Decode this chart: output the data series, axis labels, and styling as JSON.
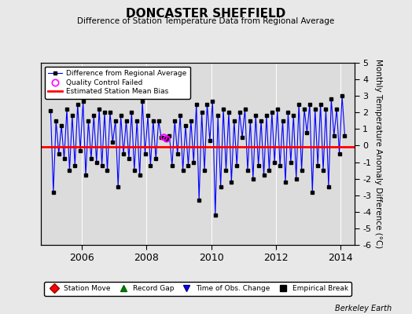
{
  "title": "DONCASTER SHEFFIELD",
  "subtitle": "Difference of Station Temperature Data from Regional Average",
  "ylabel_right": "Monthly Temperature Anomaly Difference (°C)",
  "background_color": "#e8e8e8",
  "plot_bg_color": "#dcdcdc",
  "bias_value": -0.05,
  "ylim": [
    -6,
    5
  ],
  "xlim_start": 2004.75,
  "xlim_end": 2014.42,
  "xticks": [
    2006,
    2008,
    2010,
    2012,
    2014
  ],
  "yticks": [
    -6,
    -5,
    -4,
    -3,
    -2,
    -1,
    0,
    1,
    2,
    3,
    4,
    5
  ],
  "line_color": "#0000ff",
  "marker_color": "#000000",
  "bias_color": "#ff0000",
  "qc_marker_color": "#ff00ff",
  "footer_text": "Berkeley Earth",
  "time_series": [
    2005.042,
    2005.125,
    2005.208,
    2005.292,
    2005.375,
    2005.458,
    2005.542,
    2005.625,
    2005.708,
    2005.792,
    2005.875,
    2005.958,
    2006.042,
    2006.125,
    2006.208,
    2006.292,
    2006.375,
    2006.458,
    2006.542,
    2006.625,
    2006.708,
    2006.792,
    2006.875,
    2006.958,
    2007.042,
    2007.125,
    2007.208,
    2007.292,
    2007.375,
    2007.458,
    2007.542,
    2007.625,
    2007.708,
    2007.792,
    2007.875,
    2007.958,
    2008.042,
    2008.125,
    2008.208,
    2008.292,
    2008.375,
    2008.458,
    2008.542,
    2008.625,
    2008.708,
    2008.792,
    2008.875,
    2008.958,
    2009.042,
    2009.125,
    2009.208,
    2009.292,
    2009.375,
    2009.458,
    2009.542,
    2009.625,
    2009.708,
    2009.792,
    2009.875,
    2009.958,
    2010.042,
    2010.125,
    2010.208,
    2010.292,
    2010.375,
    2010.458,
    2010.542,
    2010.625,
    2010.708,
    2010.792,
    2010.875,
    2010.958,
    2011.042,
    2011.125,
    2011.208,
    2011.292,
    2011.375,
    2011.458,
    2011.542,
    2011.625,
    2011.708,
    2011.792,
    2011.875,
    2011.958,
    2012.042,
    2012.125,
    2012.208,
    2012.292,
    2012.375,
    2012.458,
    2012.542,
    2012.625,
    2012.708,
    2012.792,
    2012.875,
    2012.958,
    2013.042,
    2013.125,
    2013.208,
    2013.292,
    2013.375,
    2013.458,
    2013.542,
    2013.625,
    2013.708,
    2013.792,
    2013.875,
    2013.958,
    2014.042,
    2014.125
  ],
  "values": [
    2.1,
    -2.8,
    1.5,
    -0.5,
    1.2,
    -0.8,
    2.2,
    -1.5,
    1.8,
    -1.2,
    2.5,
    -0.3,
    2.7,
    -1.8,
    1.5,
    -0.8,
    1.8,
    -1.0,
    2.2,
    -1.2,
    2.0,
    -1.5,
    2.0,
    0.2,
    1.5,
    -2.5,
    1.8,
    -0.5,
    1.5,
    -0.8,
    2.0,
    -1.5,
    1.5,
    -1.8,
    2.7,
    -0.5,
    1.8,
    -1.2,
    1.5,
    -0.8,
    1.5,
    0.5,
    0.5,
    0.4,
    0.6,
    -1.2,
    1.5,
    -0.5,
    1.8,
    -1.5,
    1.2,
    -1.2,
    1.5,
    -1.0,
    2.5,
    -3.3,
    2.0,
    -1.5,
    2.5,
    0.3,
    2.7,
    -4.2,
    1.8,
    -2.5,
    2.2,
    -1.5,
    2.0,
    -2.2,
    1.5,
    -1.2,
    2.0,
    0.5,
    2.2,
    -1.5,
    1.5,
    -2.0,
    1.8,
    -1.2,
    1.5,
    -1.8,
    1.8,
    -1.5,
    2.0,
    -1.0,
    2.2,
    -1.2,
    1.5,
    -2.2,
    2.0,
    -1.0,
    1.8,
    -2.0,
    2.5,
    -1.5,
    2.2,
    0.8,
    2.5,
    -2.8,
    2.2,
    -1.2,
    2.5,
    -1.5,
    2.2,
    -2.5,
    2.8,
    0.6,
    2.2,
    -0.5,
    3.0,
    0.6
  ],
  "qc_failed_times": [
    2008.542,
    2008.625
  ],
  "qc_failed_values": [
    0.5,
    0.4
  ]
}
